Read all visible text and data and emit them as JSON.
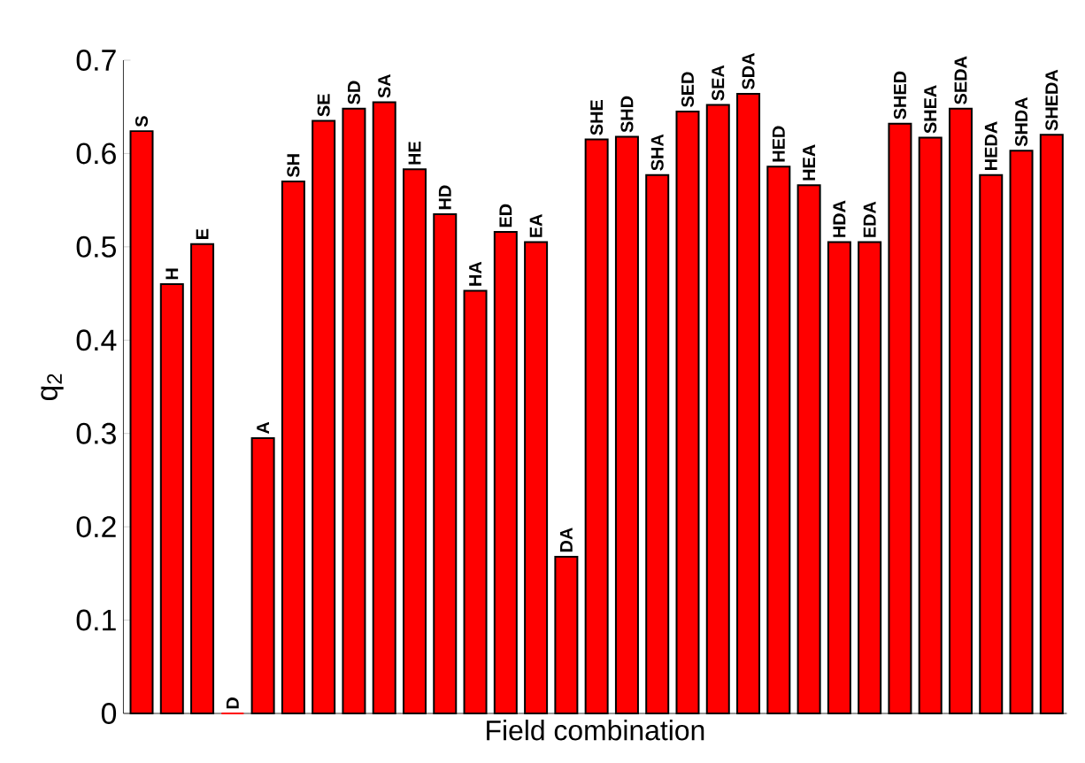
{
  "chart_data": {
    "type": "bar",
    "xlabel": "Field combination",
    "ylabel": "q$_{2}$",
    "categories": [
      "S",
      "H",
      "E",
      "D",
      "A",
      "SH",
      "SE",
      "SD",
      "SA",
      "HE",
      "HD",
      "HA",
      "ED",
      "EA",
      "DA",
      "SHE",
      "SHD",
      "SHA",
      "SED",
      "SEA",
      "SDA",
      "HED",
      "HEA",
      "HDA",
      "EDA",
      "SHED",
      "SHEA",
      "SEDA",
      "HEDA",
      "SHDA",
      "SHEDA"
    ],
    "values": [
      0.624,
      0.46,
      0.503,
      0,
      0.295,
      0.57,
      0.635,
      0.648,
      0.655,
      0.583,
      0.535,
      0.453,
      0.516,
      0.505,
      0.168,
      0.615,
      0.618,
      0.577,
      0.645,
      0.652,
      0.664,
      0.586,
      0.566,
      0.505,
      0.505,
      0.632,
      0.617,
      0.648,
      0.577,
      0.603,
      0.62
    ],
    "color": "#ff0000",
    "ylim": [
      0,
      0.7
    ],
    "yticks": [
      0,
      0.1,
      0.2,
      0.3,
      0.4,
      0.5,
      0.6,
      0.7
    ],
    "tick_labels": "y",
    "grid": false
  }
}
